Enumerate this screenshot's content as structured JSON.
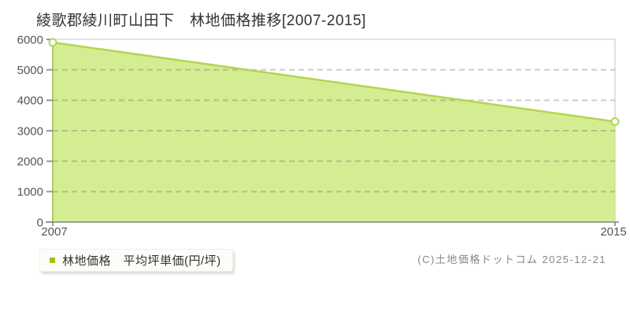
{
  "title": "綾歌郡綾川町山田下　林地価格推移[2007-2015]",
  "legend": {
    "marker_color": "#9dc413",
    "label": "林地価格　平均坪単価(円/坪)"
  },
  "copyright": "(C)土地価格ドットコム 2025-12-21",
  "chart_data": {
    "type": "area",
    "title": "綾歌郡綾川町山田下 林地価格推移[2007-2015]",
    "x": [
      2007,
      2015
    ],
    "series": [
      {
        "name": "林地価格 平均坪単価(円/坪)",
        "values": [
          5900,
          3300
        ]
      }
    ],
    "x_tick_labels": [
      "2007",
      "2015"
    ],
    "y_ticks": [
      0,
      1000,
      2000,
      3000,
      4000,
      5000,
      6000
    ],
    "xlim": [
      2007,
      2015
    ],
    "ylim": [
      0,
      6000
    ],
    "xlabel": "",
    "ylabel": "平均坪単価(円/坪)",
    "grid": "horizontal-dashed",
    "legend_position": "bottom-left",
    "colors": {
      "line": "#b3d54e",
      "fill": "#cbe877",
      "area_edge": "#9cc23f",
      "marker_fill": "#ffffff",
      "legend_marker": "#9dc413",
      "axis": "#6f6f6f",
      "tick_label": "#555555",
      "gridline": "#bbbbbb",
      "plot_border": "#e2e2e2"
    }
  }
}
